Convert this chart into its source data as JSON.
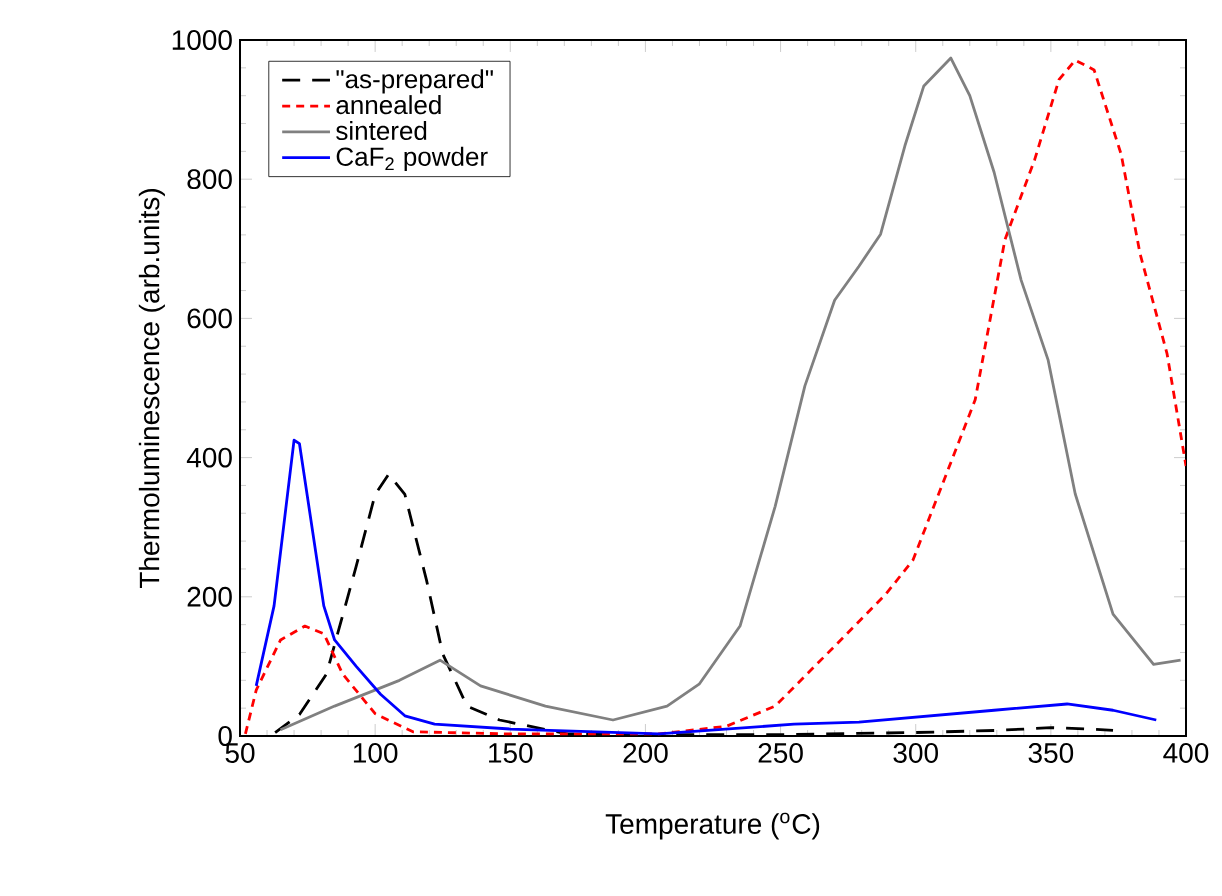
{
  "chart_data": {
    "type": "line",
    "xlabel": "Temperature ($^{o}$C)",
    "ylabel": "Thermoluminescence (arb.units)",
    "xlim": [
      50,
      400
    ],
    "ylim": [
      0,
      1000
    ],
    "xticks": [
      50,
      100,
      150,
      200,
      250,
      300,
      350,
      400
    ],
    "yticks": [
      0,
      200,
      400,
      600,
      800,
      1000
    ],
    "grid": false,
    "legend": "top left",
    "series": [
      {
        "name": "\"as-prepared\"",
        "color": "#000000",
        "line_style": "dashed",
        "x": [
          63,
          72,
          82,
          93,
          100,
          105,
          111,
          119,
          125,
          134,
          146,
          171,
          200,
          250,
          300,
          330,
          350,
          365,
          373
        ],
        "values": [
          5,
          31,
          89,
          244,
          347,
          376,
          347,
          224,
          118,
          43,
          23,
          3,
          2,
          2,
          5,
          8,
          12,
          10,
          8
        ]
      },
      {
        "name": "annealed",
        "color": "#ff0000",
        "line_style": "dotted",
        "x": [
          52,
          56,
          65,
          74,
          81,
          88,
          100,
          114,
          150,
          205,
          230,
          248,
          270,
          289,
          299,
          322,
          333,
          344,
          353,
          359,
          366,
          376,
          383,
          393,
          400
        ],
        "values": [
          3,
          66,
          138,
          158,
          147,
          89,
          32,
          6,
          3,
          3,
          14,
          43,
          129,
          204,
          253,
          483,
          713,
          828,
          943,
          971,
          957,
          836,
          693,
          549,
          388
        ]
      },
      {
        "name": "sintered",
        "color": "#808080",
        "line_style": "solid",
        "x": [
          65,
          85,
          109,
          124,
          139,
          163,
          188,
          208,
          220,
          235,
          248,
          259,
          270,
          279,
          287,
          296,
          303,
          313,
          320,
          329,
          339,
          349,
          359,
          373,
          388,
          398
        ],
        "values": [
          9,
          43,
          80,
          109,
          72,
          43,
          23,
          43,
          75,
          158,
          330,
          503,
          626,
          675,
          721,
          848,
          934,
          974,
          920,
          810,
          655,
          540,
          348,
          175,
          103,
          109
        ]
      },
      {
        "name": "CaF$_{2}$ powder",
        "color": "#0000ff",
        "line_style": "solid",
        "x": [
          56,
          62.6,
          70,
          72,
          81,
          85,
          93,
          102,
          111,
          122,
          150,
          205,
          255,
          279,
          329,
          356,
          373,
          389
        ],
        "values": [
          72,
          187,
          425,
          420,
          187,
          138,
          100,
          60,
          29,
          17,
          10,
          3,
          17,
          20,
          37,
          46,
          37,
          23
        ]
      }
    ]
  }
}
